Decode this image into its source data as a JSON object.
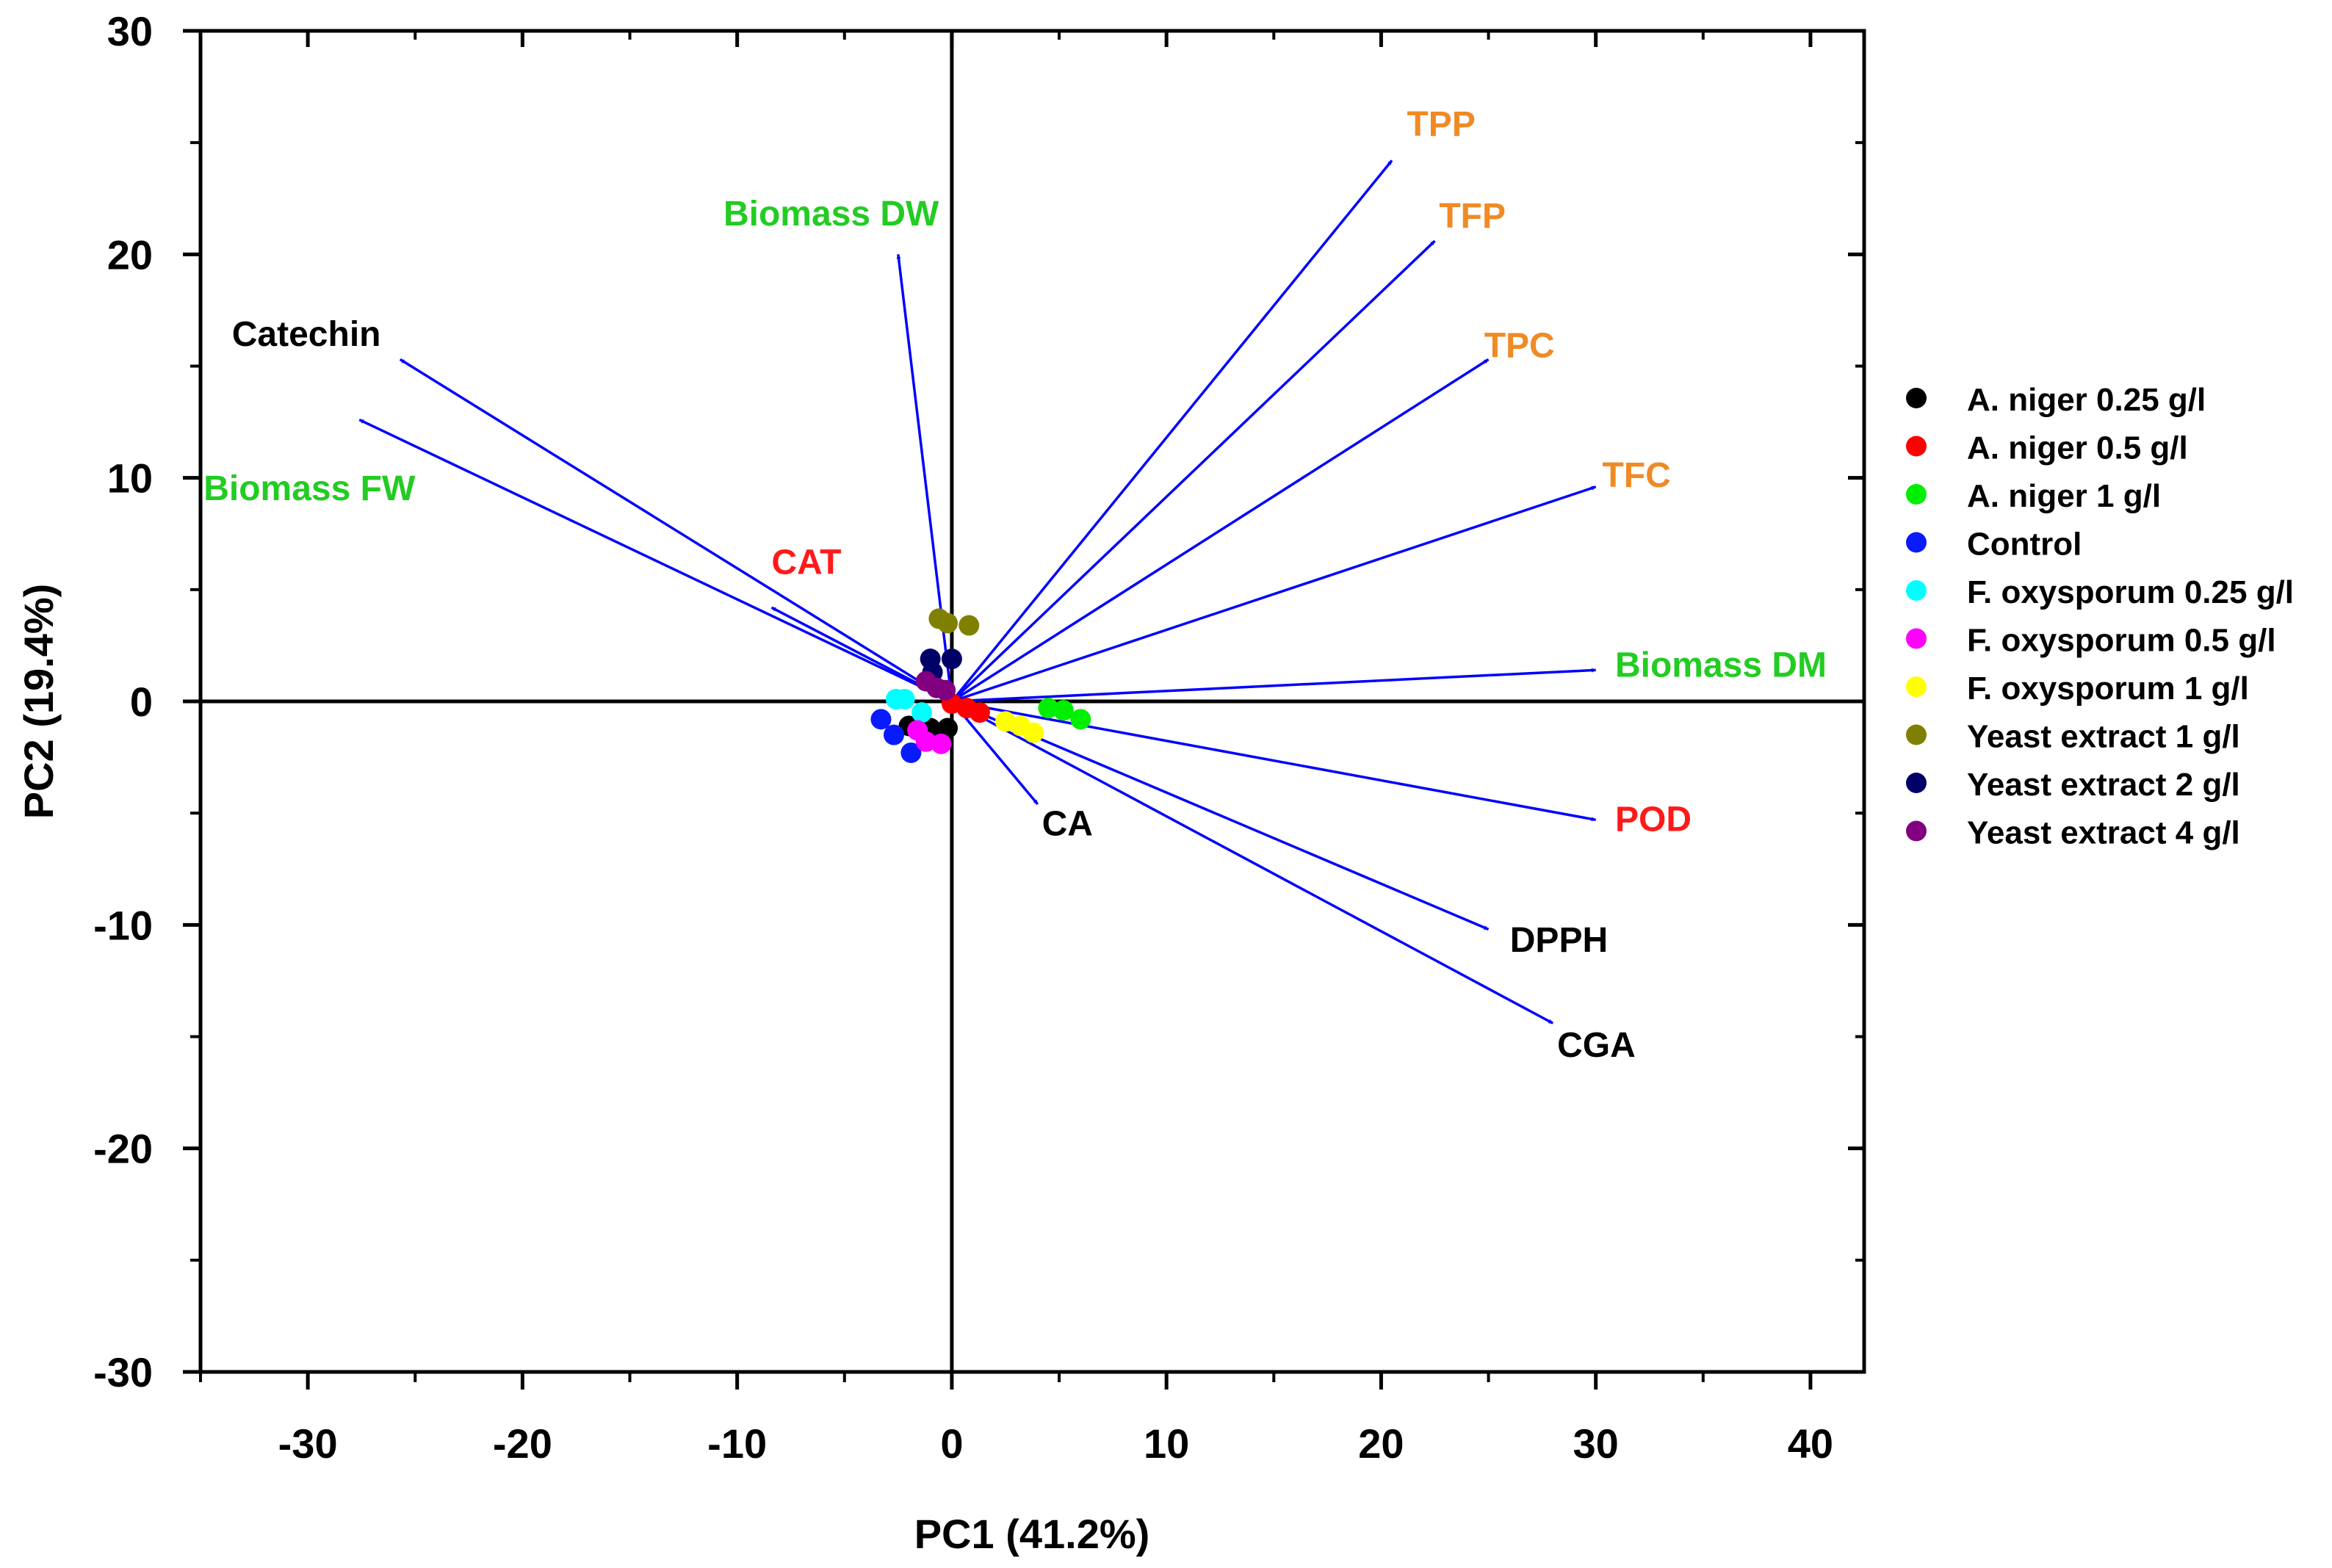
{
  "chart_data": {
    "type": "scatter",
    "subtype": "pca-biplot",
    "xlabel": "PC1 (41.2%)",
    "ylabel": "PC2 (19.4%)",
    "xlim": [
      -35,
      42.5
    ],
    "ylim": [
      -30,
      30
    ],
    "xticks": [
      -30,
      -20,
      -10,
      0,
      10,
      20,
      30,
      40
    ],
    "xtick_labels": [
      "-30",
      "-20",
      "-10",
      "0",
      "10",
      "20",
      "30",
      "40"
    ],
    "yticks": [
      -30,
      -20,
      -10,
      0,
      10,
      20,
      30
    ],
    "ytick_labels": [
      "-30",
      "-20",
      "-10",
      "0",
      "10",
      "20",
      "30"
    ],
    "grid": false,
    "legend_position": "right",
    "arrow_color": "#0000ff",
    "loadings": [
      {
        "label": "TPP",
        "x": 20.5,
        "y": 24.2,
        "color": "#f08a24",
        "anchor": "start",
        "lx": 21.2,
        "ly": 25.3
      },
      {
        "label": "TFP",
        "x": 22.5,
        "y": 20.6,
        "color": "#f08a24",
        "anchor": "start",
        "lx": 22.7,
        "ly": 21.2
      },
      {
        "label": "TPC",
        "x": 25.0,
        "y": 15.3,
        "color": "#f08a24",
        "anchor": "start",
        "lx": 24.8,
        "ly": 15.4
      },
      {
        "label": "TFC",
        "x": 30.0,
        "y": 9.6,
        "color": "#f08a24",
        "anchor": "start",
        "lx": 30.3,
        "ly": 9.6
      },
      {
        "label": "Biomass DM",
        "x": 30.0,
        "y": 1.4,
        "color": "#22cc22",
        "anchor": "start",
        "lx": 30.9,
        "ly": 1.1
      },
      {
        "label": "POD",
        "x": 30.0,
        "y": -5.3,
        "color": "#ff1a1a",
        "anchor": "start",
        "lx": 30.9,
        "ly": -5.8
      },
      {
        "label": "DPPH",
        "x": 25.0,
        "y": -10.2,
        "color": "#000000",
        "anchor": "start",
        "lx": 26.0,
        "ly": -11.2
      },
      {
        "label": "CGA",
        "x": 28.0,
        "y": -14.4,
        "color": "#000000",
        "anchor": "start",
        "lx": 28.2,
        "ly": -15.9
      },
      {
        "label": "CA",
        "x": 4.0,
        "y": -4.6,
        "color": "#000000",
        "anchor": "start",
        "lx": 4.2,
        "ly": -6.0
      },
      {
        "label": "CAT",
        "x": -8.4,
        "y": 4.2,
        "color": "#ff1a1a",
        "anchor": "start",
        "lx": -8.4,
        "ly": 5.7
      },
      {
        "label": "Catechin",
        "x": -25.7,
        "y": 15.3,
        "color": "#000000",
        "anchor": "end",
        "lx": -26.6,
        "ly": 15.9
      },
      {
        "label": "Biomass FW",
        "x": -27.6,
        "y": 12.6,
        "color": "#22cc22",
        "anchor": "end",
        "lx": -25.0,
        "ly": 9.0
      },
      {
        "label": "Biomass DW",
        "x": -2.5,
        "y": 20.0,
        "color": "#22cc22",
        "anchor": "end",
        "lx": -0.6,
        "ly": 21.3
      }
    ],
    "series": [
      {
        "name": "A. niger 0.25 g/l",
        "color": "#000000",
        "points": [
          [
            -2.0,
            -1.1
          ],
          [
            -1.0,
            -1.2
          ],
          [
            -0.2,
            -1.2
          ]
        ]
      },
      {
        "name": "A. niger 0.5 g/l",
        "color": "#ff0000",
        "points": [
          [
            0.0,
            -0.1
          ],
          [
            0.7,
            -0.3
          ],
          [
            1.3,
            -0.5
          ]
        ]
      },
      {
        "name": "A. niger 1 g/l",
        "color": "#00ee00",
        "points": [
          [
            4.5,
            -0.3
          ],
          [
            5.2,
            -0.4
          ],
          [
            6.0,
            -0.8
          ]
        ]
      },
      {
        "name": "Control",
        "color": "#0a1aff",
        "points": [
          [
            -3.3,
            -0.8
          ],
          [
            -2.7,
            -1.5
          ],
          [
            -1.9,
            -2.3
          ]
        ]
      },
      {
        "name": "F. oxysporum 0.25 g/l",
        "color": "#00ffff",
        "points": [
          [
            -2.6,
            0.1
          ],
          [
            -2.2,
            0.1
          ],
          [
            -1.4,
            -0.5
          ]
        ]
      },
      {
        "name": "F. oxysporum 0.5 g/l",
        "color": "#ff00ff",
        "points": [
          [
            -1.6,
            -1.3
          ],
          [
            -1.2,
            -1.8
          ],
          [
            -0.5,
            -1.9
          ]
        ]
      },
      {
        "name": "F. oxysporum 1 g/l",
        "color": "#ffff00",
        "points": [
          [
            2.5,
            -0.9
          ],
          [
            3.2,
            -1.1
          ],
          [
            3.8,
            -1.4
          ]
        ]
      },
      {
        "name": "Yeast extract 1 g/l",
        "color": "#808000",
        "points": [
          [
            -0.6,
            3.7
          ],
          [
            -0.2,
            3.5
          ],
          [
            0.8,
            3.4
          ]
        ]
      },
      {
        "name": "Yeast extract 2 g/l",
        "color": "#000066",
        "points": [
          [
            -1.0,
            1.9
          ],
          [
            0.0,
            1.9
          ],
          [
            -0.9,
            1.3
          ]
        ]
      },
      {
        "name": "Yeast extract 4 g/l",
        "color": "#800080",
        "points": [
          [
            -1.2,
            0.9
          ],
          [
            -0.7,
            0.6
          ],
          [
            -0.3,
            0.5
          ]
        ]
      }
    ]
  }
}
